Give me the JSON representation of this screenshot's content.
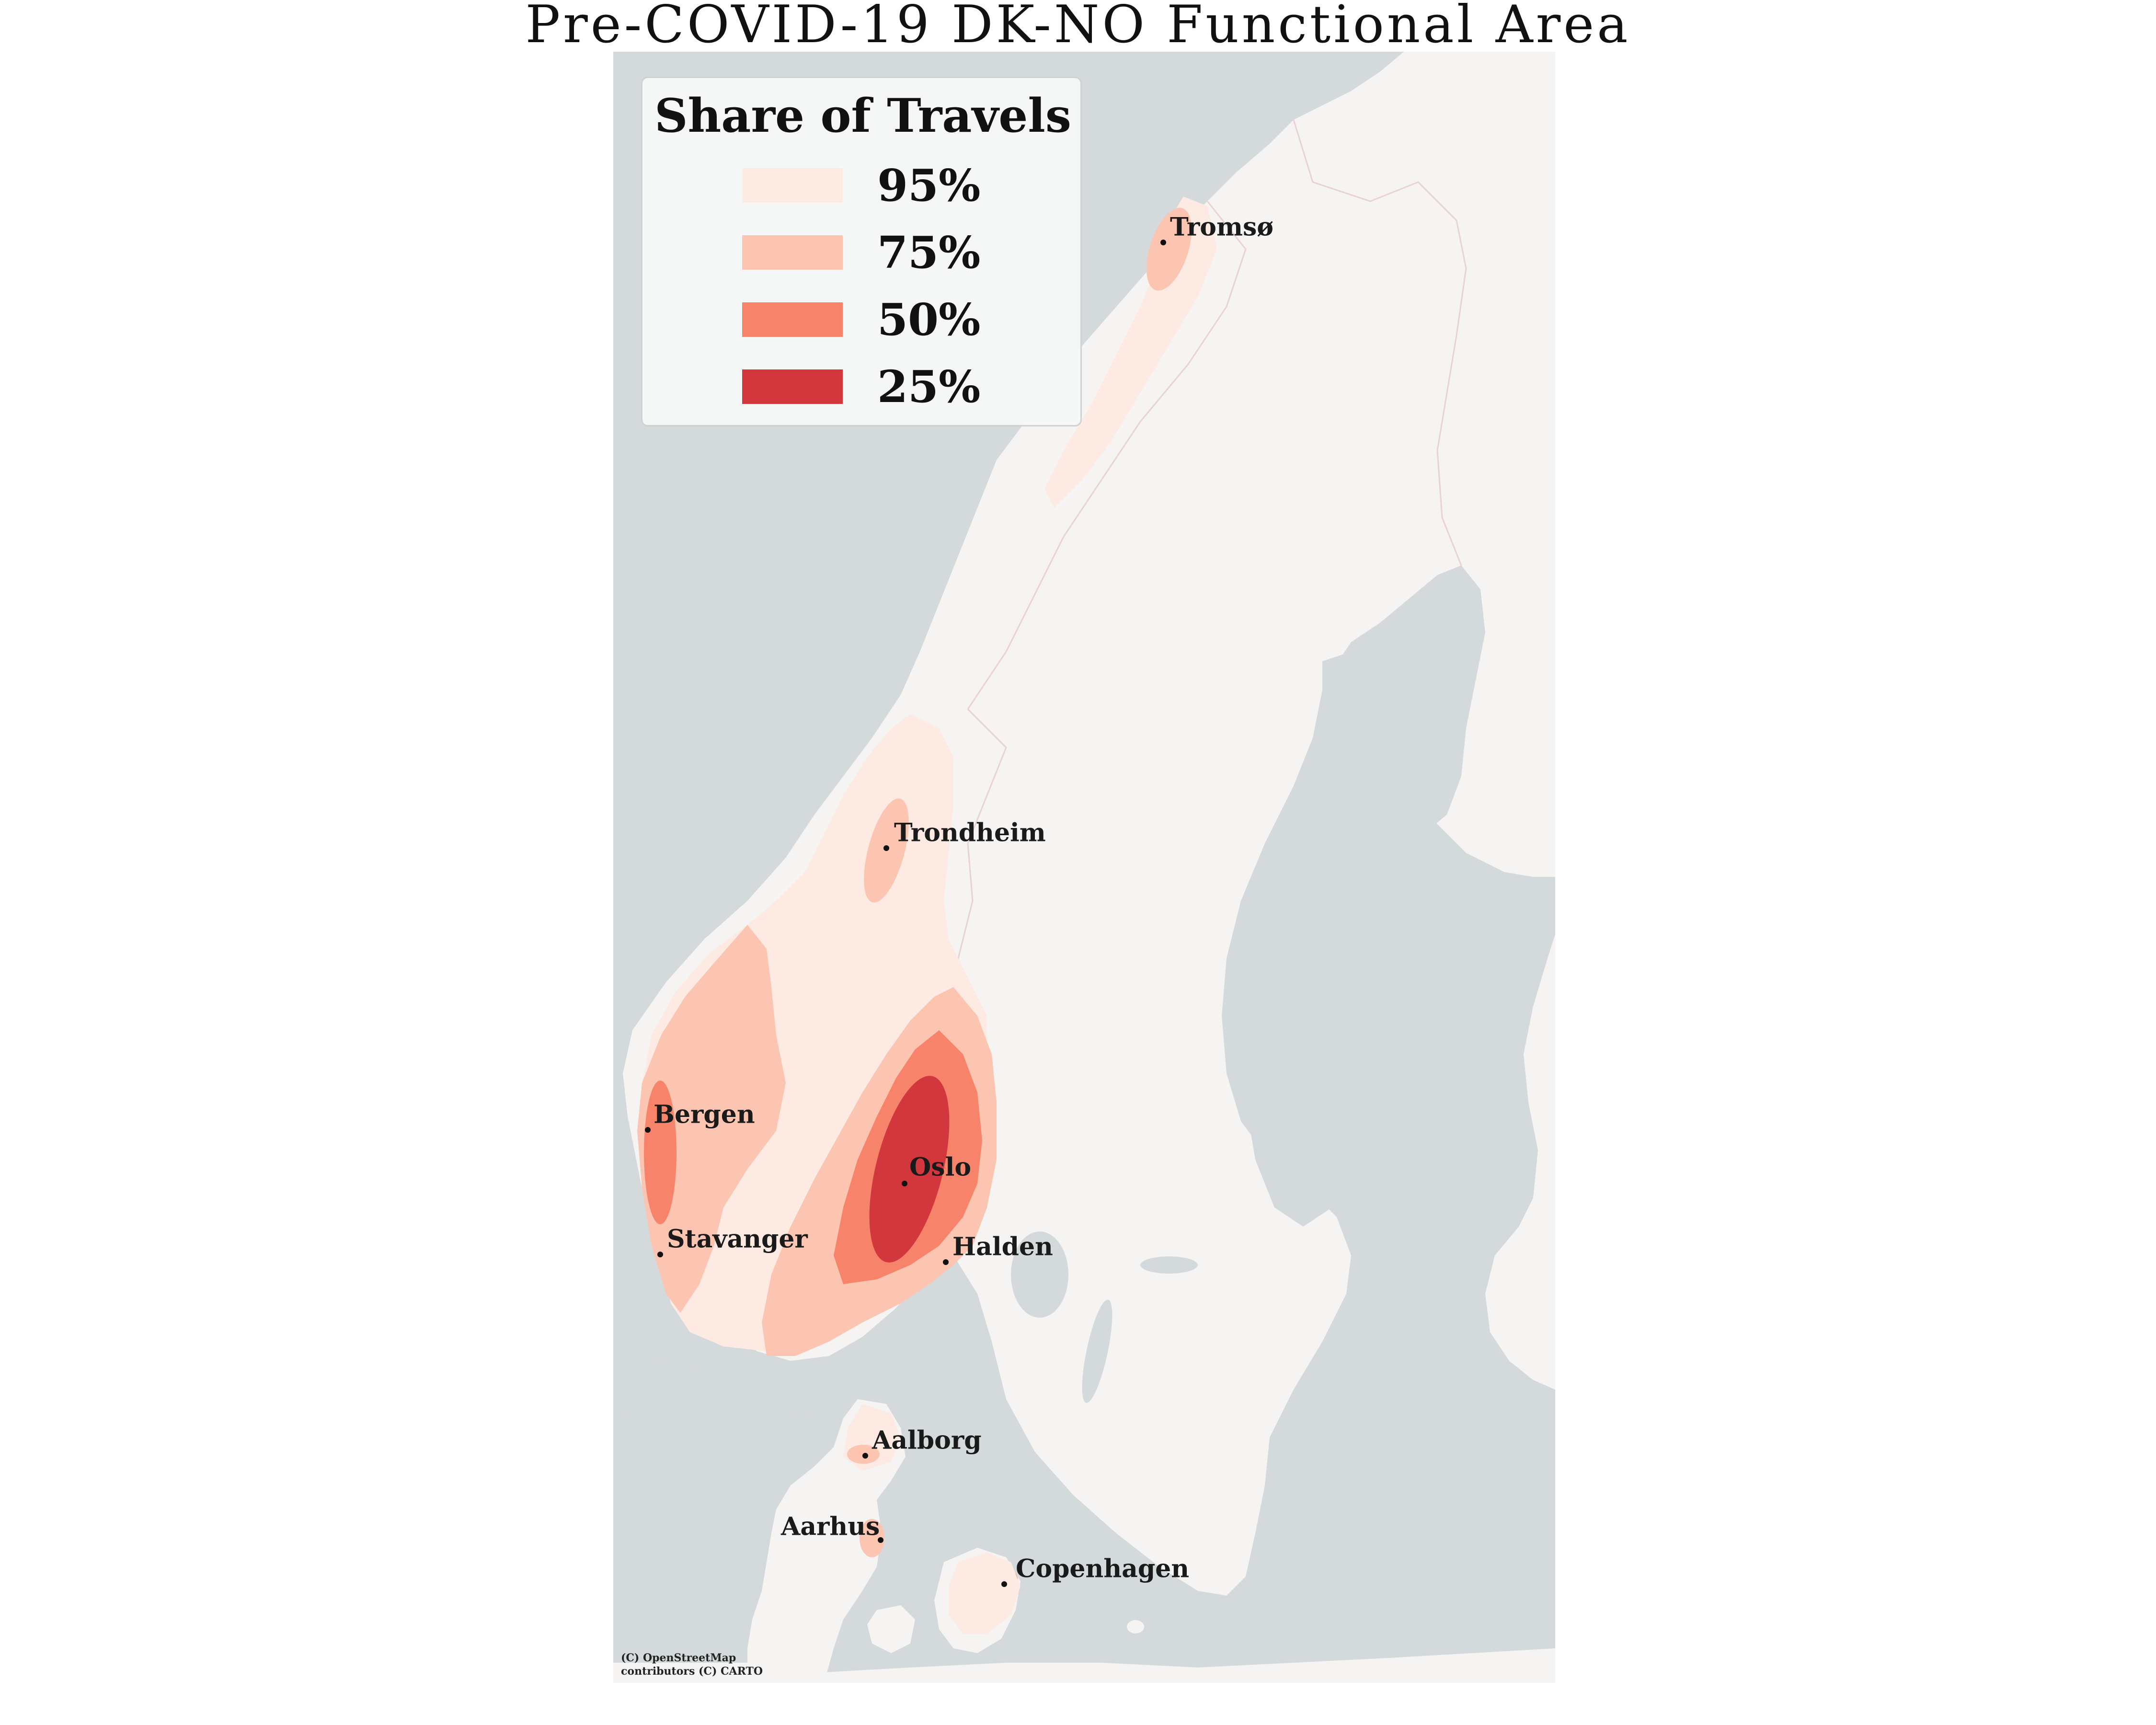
{
  "title": "Pre-COVID-19 DK-NO Functional Area",
  "legend": {
    "title": "Share of Travels",
    "items": [
      {
        "label": "95%",
        "color": "#fdeae3"
      },
      {
        "label": "75%",
        "color": "#fbc5b1"
      },
      {
        "label": "50%",
        "color": "#f7846a"
      },
      {
        "label": "25%",
        "color": "#d3373e"
      }
    ]
  },
  "colors": {
    "water": "#d4d9dc",
    "land": "#f5f4f2",
    "border": "#e8d2d2"
  },
  "cities": [
    {
      "name": "Tromsø"
    },
    {
      "name": "Trondheim"
    },
    {
      "name": "Bergen"
    },
    {
      "name": "Oslo"
    },
    {
      "name": "Stavanger"
    },
    {
      "name": "Halden"
    },
    {
      "name": "Aalborg"
    },
    {
      "name": "Aarhus"
    },
    {
      "name": "Copenhagen"
    }
  ],
  "attribution": {
    "line1": "(C) OpenStreetMap",
    "line2": "contributors (C) CARTO"
  }
}
